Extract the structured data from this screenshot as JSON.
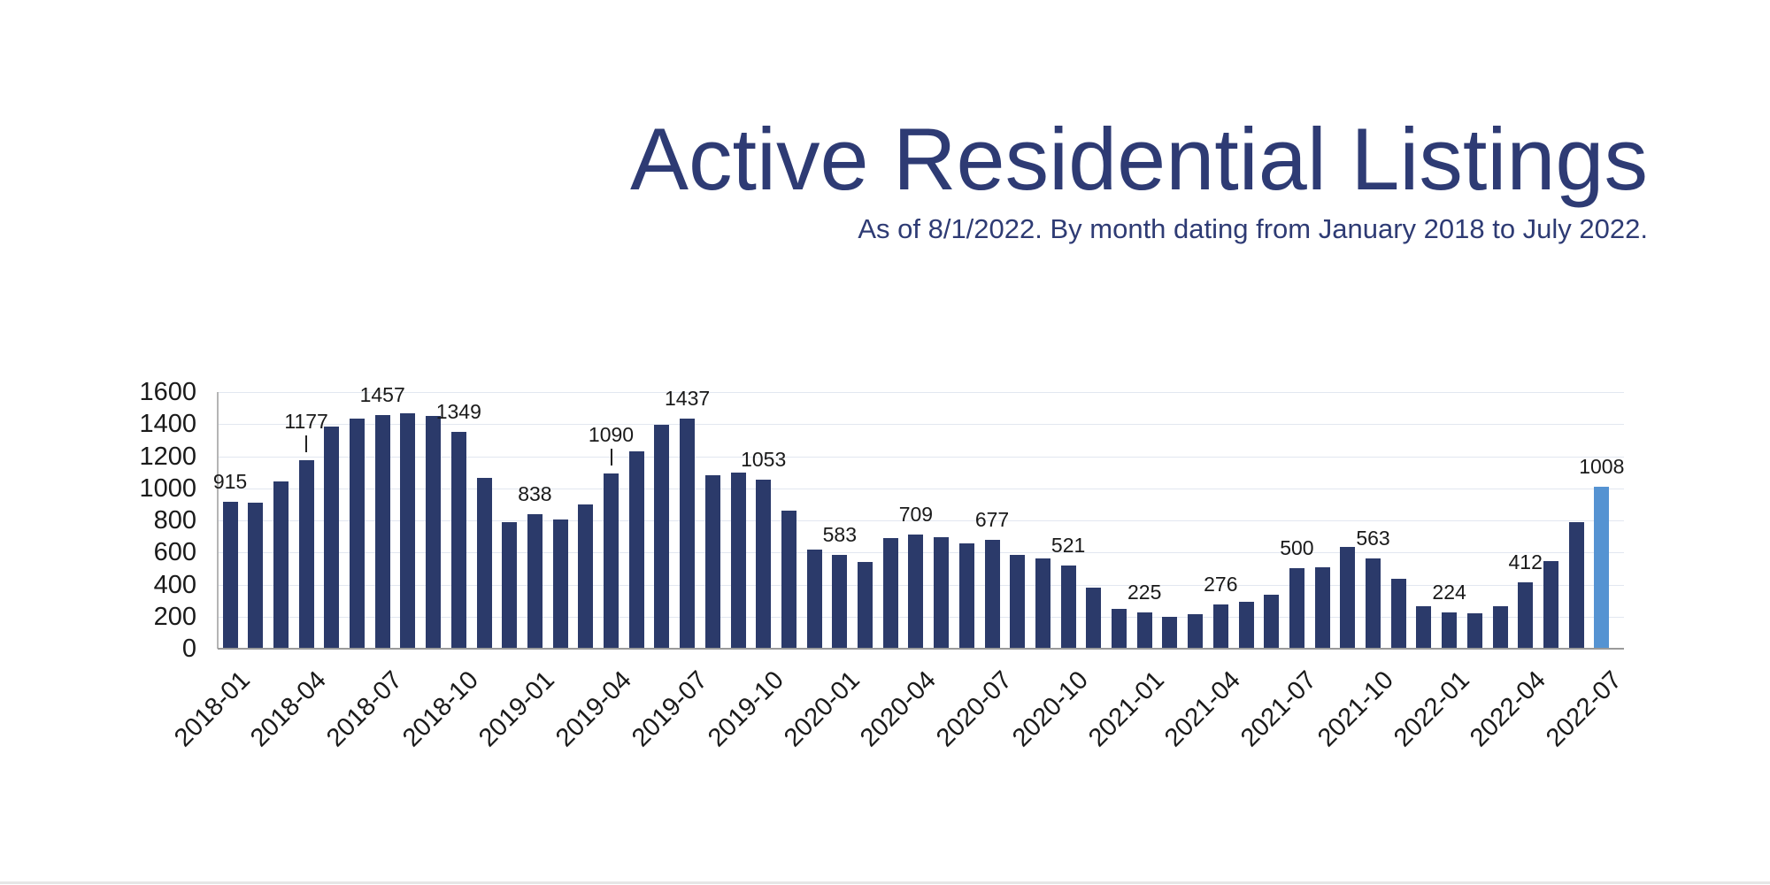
{
  "page": {
    "background": "#ffffff"
  },
  "header": {
    "title": "Active Residential Listings",
    "subtitle": "As of 8/1/2022. By month dating from January 2018 to July 2022.",
    "text_color": "#2e3b74"
  },
  "chart_data": {
    "type": "bar",
    "title": "Active Residential Listings",
    "subtitle": "As of 8/1/2022. By month dating from January 2018 to July 2022.",
    "xlabel": "",
    "ylabel": "",
    "ylim": [
      0,
      1600
    ],
    "ytick_step": 200,
    "y_tick_labels": [
      "0",
      "200",
      "400",
      "600",
      "800",
      "1000",
      "1200",
      "1400",
      "1600"
    ],
    "grid": true,
    "legend": false,
    "bar_color": "#2b3a6a",
    "highlight_color": "#5593d2",
    "highlight_index": 54,
    "categories": [
      "2018-01",
      "2018-02",
      "2018-03",
      "2018-04",
      "2018-05",
      "2018-06",
      "2018-07",
      "2018-08",
      "2018-09",
      "2018-10",
      "2018-11",
      "2018-12",
      "2019-01",
      "2019-02",
      "2019-03",
      "2019-04",
      "2019-05",
      "2019-06",
      "2019-07",
      "2019-08",
      "2019-09",
      "2019-10",
      "2019-11",
      "2019-12",
      "2020-01",
      "2020-02",
      "2020-03",
      "2020-04",
      "2020-05",
      "2020-06",
      "2020-07",
      "2020-08",
      "2020-09",
      "2020-10",
      "2020-11",
      "2020-12",
      "2021-01",
      "2021-02",
      "2021-03",
      "2021-04",
      "2021-05",
      "2021-06",
      "2021-07",
      "2021-08",
      "2021-09",
      "2021-10",
      "2021-11",
      "2021-12",
      "2022-01",
      "2022-02",
      "2022-03",
      "2022-04",
      "2022-05",
      "2022-06",
      "2022-07"
    ],
    "values": [
      915,
      913,
      1043,
      1177,
      1385,
      1434,
      1457,
      1470,
      1452,
      1349,
      1065,
      788,
      838,
      806,
      898,
      1090,
      1230,
      1395,
      1437,
      1080,
      1096,
      1053,
      860,
      620,
      583,
      543,
      690,
      709,
      694,
      655,
      677,
      584,
      564,
      521,
      380,
      250,
      225,
      198,
      214,
      276,
      295,
      338,
      500,
      510,
      635,
      563,
      435,
      265,
      224,
      218,
      265,
      412,
      545,
      788,
      1008
    ],
    "data_labels": [
      {
        "index": 0,
        "text": "915",
        "leader": false
      },
      {
        "index": 3,
        "text": "1177",
        "leader": true
      },
      {
        "index": 6,
        "text": "1457",
        "leader": false
      },
      {
        "index": 9,
        "text": "1349",
        "leader": false
      },
      {
        "index": 12,
        "text": "838",
        "leader": false
      },
      {
        "index": 15,
        "text": "1090",
        "leader": true
      },
      {
        "index": 18,
        "text": "1437",
        "leader": false
      },
      {
        "index": 21,
        "text": "1053",
        "leader": false
      },
      {
        "index": 24,
        "text": "583",
        "leader": false
      },
      {
        "index": 27,
        "text": "709",
        "leader": false
      },
      {
        "index": 30,
        "text": "677",
        "leader": false
      },
      {
        "index": 33,
        "text": "521",
        "leader": false
      },
      {
        "index": 36,
        "text": "225",
        "leader": false
      },
      {
        "index": 39,
        "text": "276",
        "leader": false
      },
      {
        "index": 42,
        "text": "500",
        "leader": false
      },
      {
        "index": 45,
        "text": "563",
        "leader": false
      },
      {
        "index": 48,
        "text": "224",
        "leader": false
      },
      {
        "index": 51,
        "text": "412",
        "leader": false
      },
      {
        "index": 54,
        "text": "1008",
        "leader": false
      }
    ],
    "x_ticks": [
      {
        "index": 0,
        "label": "2018-01"
      },
      {
        "index": 3,
        "label": "2018-04"
      },
      {
        "index": 6,
        "label": "2018-07"
      },
      {
        "index": 9,
        "label": "2018-10"
      },
      {
        "index": 12,
        "label": "2019-01"
      },
      {
        "index": 15,
        "label": "2019-04"
      },
      {
        "index": 18,
        "label": "2019-07"
      },
      {
        "index": 21,
        "label": "2019-10"
      },
      {
        "index": 24,
        "label": "2020-01"
      },
      {
        "index": 27,
        "label": "2020-04"
      },
      {
        "index": 30,
        "label": "2020-07"
      },
      {
        "index": 33,
        "label": "2020-10"
      },
      {
        "index": 36,
        "label": "2021-01"
      },
      {
        "index": 39,
        "label": "2021-04"
      },
      {
        "index": 42,
        "label": "2021-07"
      },
      {
        "index": 45,
        "label": "2021-10"
      },
      {
        "index": 48,
        "label": "2022-01"
      },
      {
        "index": 51,
        "label": "2022-04"
      },
      {
        "index": 54,
        "label": "2022-07"
      }
    ]
  }
}
